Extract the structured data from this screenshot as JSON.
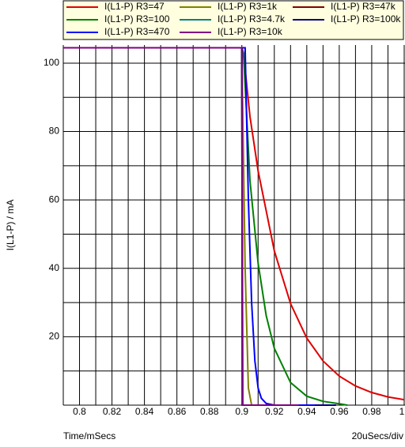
{
  "chart_data": {
    "type": "line",
    "y_label": "I(L1-P) / mA",
    "x_label": "Time/mSecs",
    "x_scale_label": "20uSecs/div",
    "xlim": [
      0.79,
      1.0005
    ],
    "ylim": [
      0,
      105.3
    ],
    "xticks": [
      0.8,
      0.82,
      0.84,
      0.86,
      0.88,
      0.9,
      0.92,
      0.94,
      0.96,
      0.98,
      1
    ],
    "x_minor_ticks": [
      0.79,
      0.81,
      0.83,
      0.85,
      0.87,
      0.89,
      0.91,
      0.93,
      0.95,
      0.97,
      0.99
    ],
    "yticks": [
      20,
      40,
      60,
      80,
      100
    ],
    "y_minor_ticks": [
      10,
      30,
      50,
      70,
      90
    ],
    "grid": true,
    "series": [
      {
        "name": "I(L1-P) R3=47",
        "color": "#e00000",
        "x": [
          0.79,
          0.9,
          0.901,
          0.905,
          0.91,
          0.92,
          0.93,
          0.94,
          0.95,
          0.96,
          0.97,
          0.98,
          0.99,
          1.0
        ],
        "values": [
          104.5,
          104.5,
          103,
          84.4,
          68.5,
          45.1,
          29.7,
          19.6,
          12.9,
          8.5,
          5.6,
          3.7,
          2.4,
          1.6
        ]
      },
      {
        "name": "I(L1-P) R3=1k",
        "color": "#808000",
        "x": [
          0.79,
          0.9,
          0.902,
          0.904,
          0.906,
          0.92
        ],
        "values": [
          104.5,
          104.5,
          40,
          5,
          0,
          0
        ]
      },
      {
        "name": "I(L1-P) R3=47k",
        "color": "#800000",
        "x": [
          0.79,
          0.9,
          0.9004,
          0.93
        ],
        "values": [
          104.5,
          104.5,
          0,
          0
        ]
      },
      {
        "name": "I(L1-P) R3=100",
        "color": "#008000",
        "x": [
          0.79,
          0.9,
          0.901,
          0.905,
          0.91,
          0.915,
          0.92,
          0.93,
          0.94,
          0.95,
          0.96,
          0.965
        ],
        "values": [
          104.5,
          104.5,
          103,
          65.7,
          41.5,
          26.2,
          16.6,
          6.6,
          2.6,
          1.1,
          0.4,
          0
        ]
      },
      {
        "name": "I(L1-P) R3=4.7k",
        "color": "#008080",
        "x": [
          0.79,
          0.9,
          0.9006,
          0.94
        ],
        "values": [
          104.5,
          104.5,
          0,
          0
        ]
      },
      {
        "name": "I(L1-P) R3=100k",
        "color": "#000080",
        "x": [
          0.79,
          0.9,
          0.9003,
          0.958
        ],
        "values": [
          104.5,
          104.5,
          0,
          0
        ]
      },
      {
        "name": "I(L1-P) R3=470",
        "color": "#0000ff",
        "x": [
          0.79,
          0.902,
          0.904,
          0.906,
          0.908,
          0.91,
          0.912,
          0.915,
          0.92,
          0.945
        ],
        "values": [
          104.5,
          104.5,
          60,
          30,
          13,
          5,
          2,
          0.5,
          0,
          0
        ]
      },
      {
        "name": "I(L1-P) R3=10k",
        "color": "#800080",
        "x": [
          0.79,
          0.9,
          0.9005,
          0.935
        ],
        "values": [
          104.5,
          104.5,
          0,
          0
        ]
      }
    ]
  }
}
